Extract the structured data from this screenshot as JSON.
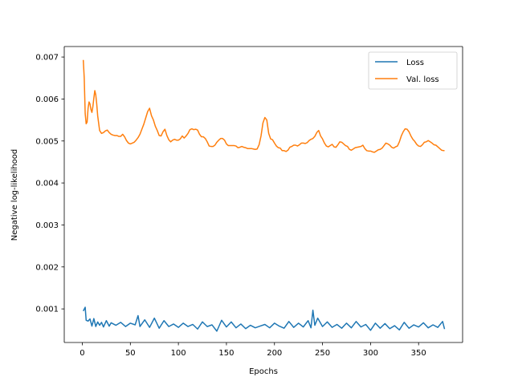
{
  "chart_data": {
    "type": "line",
    "title": "",
    "xlabel": "Epochs",
    "ylabel": "Negative log-likelihood",
    "xlim": [
      -18.8,
      395.8
    ],
    "ylim": [
      0.0002,
      0.00725
    ],
    "xticks": [
      0,
      50,
      100,
      150,
      200,
      250,
      300,
      350
    ],
    "xtick_labels": [
      "0",
      "50",
      "100",
      "150",
      "200",
      "250",
      "300",
      "350"
    ],
    "yticks": [
      0.001,
      0.002,
      0.003,
      0.004,
      0.005,
      0.006,
      0.007
    ],
    "ytick_labels": [
      "0.001",
      "0.002",
      "0.003",
      "0.004",
      "0.005",
      "0.006",
      "0.007"
    ],
    "grid": false,
    "legend_position": "upper right",
    "series": [
      {
        "name": "Loss",
        "color": "#1f77b4",
        "x": [
          1,
          3,
          4,
          6,
          8,
          10,
          12,
          14,
          16,
          18,
          20,
          22,
          25,
          28,
          30,
          35,
          40,
          45,
          50,
          55,
          58,
          60,
          65,
          70,
          75,
          80,
          85,
          90,
          95,
          100,
          105,
          110,
          115,
          120,
          125,
          130,
          135,
          140,
          145,
          150,
          155,
          160,
          165,
          170,
          175,
          180,
          185,
          190,
          195,
          200,
          205,
          210,
          215,
          220,
          225,
          230,
          235,
          238,
          240,
          242,
          245,
          250,
          255,
          260,
          265,
          270,
          275,
          280,
          285,
          290,
          295,
          300,
          305,
          310,
          315,
          320,
          325,
          330,
          335,
          340,
          345,
          350,
          355,
          360,
          365,
          370,
          375,
          377
        ],
        "y": [
          0.00095,
          0.00104,
          0.00073,
          0.00071,
          0.00076,
          0.00059,
          0.00077,
          0.00058,
          0.00069,
          0.00061,
          0.00068,
          0.00057,
          0.00072,
          0.00059,
          0.00067,
          0.00061,
          0.00068,
          0.00058,
          0.00066,
          0.00062,
          0.00084,
          0.00058,
          0.00074,
          0.00056,
          0.00078,
          0.00054,
          0.00072,
          0.00058,
          0.00064,
          0.00056,
          0.00066,
          0.00058,
          0.00063,
          0.00052,
          0.00069,
          0.00058,
          0.00062,
          0.00047,
          0.00073,
          0.00057,
          0.00069,
          0.00055,
          0.00064,
          0.00053,
          0.00061,
          0.00055,
          0.00059,
          0.00063,
          0.00055,
          0.00066,
          0.00059,
          0.00054,
          0.0007,
          0.00056,
          0.00066,
          0.00057,
          0.00072,
          0.00055,
          0.00097,
          0.00061,
          0.00078,
          0.00058,
          0.00069,
          0.00056,
          0.00063,
          0.00054,
          0.00066,
          0.00055,
          0.0007,
          0.00057,
          0.00063,
          0.00049,
          0.00066,
          0.00054,
          0.00065,
          0.00053,
          0.0006,
          0.0005,
          0.00068,
          0.00054,
          0.00062,
          0.00057,
          0.00067,
          0.00055,
          0.00062,
          0.00056,
          0.0007,
          0.00052
        ]
      },
      {
        "name": "Val. loss",
        "color": "#ff7f0e",
        "x": [
          1,
          2,
          3,
          4,
          5,
          6,
          7,
          8,
          9,
          10,
          11,
          12,
          13,
          14,
          15,
          16,
          18,
          20,
          22,
          24,
          26,
          28,
          30,
          32,
          34,
          36,
          38,
          40,
          42,
          44,
          46,
          48,
          50,
          52,
          54,
          56,
          58,
          60,
          62,
          64,
          66,
          68,
          70,
          72,
          74,
          76,
          78,
          80,
          82,
          84,
          86,
          88,
          90,
          92,
          94,
          96,
          98,
          100,
          102,
          104,
          106,
          108,
          110,
          112,
          114,
          116,
          118,
          120,
          122,
          124,
          126,
          128,
          130,
          132,
          134,
          136,
          138,
          140,
          142,
          144,
          146,
          148,
          150,
          152,
          154,
          156,
          158,
          160,
          162,
          164,
          166,
          168,
          170,
          172,
          174,
          176,
          178,
          180,
          182,
          184,
          186,
          188,
          190,
          192,
          194,
          196,
          198,
          200,
          202,
          204,
          206,
          208,
          210,
          212,
          214,
          216,
          218,
          220,
          222,
          224,
          226,
          228,
          230,
          232,
          234,
          236,
          238,
          240,
          242,
          244,
          246,
          248,
          250,
          252,
          254,
          256,
          258,
          260,
          262,
          264,
          266,
          268,
          270,
          272,
          274,
          276,
          278,
          280,
          282,
          284,
          286,
          288,
          290,
          292,
          294,
          296,
          298,
          300,
          302,
          304,
          306,
          308,
          310,
          312,
          314,
          316,
          318,
          320,
          322,
          324,
          326,
          328,
          330,
          332,
          334,
          336,
          338,
          340,
          342,
          344,
          346,
          348,
          350,
          352,
          354,
          356,
          358,
          360,
          362,
          364,
          366,
          368,
          370,
          372,
          374,
          376,
          377
        ],
        "y": [
          0.00693,
          0.0065,
          0.00565,
          0.00541,
          0.00545,
          0.00578,
          0.00593,
          0.00588,
          0.00575,
          0.00568,
          0.00582,
          0.00602,
          0.0062,
          0.0061,
          0.00588,
          0.0056,
          0.00525,
          0.00518,
          0.0052,
          0.00524,
          0.00526,
          0.0052,
          0.00516,
          0.00514,
          0.00513,
          0.00513,
          0.00511,
          0.00511,
          0.00516,
          0.0051,
          0.00501,
          0.00495,
          0.00493,
          0.00495,
          0.00497,
          0.00502,
          0.00508,
          0.00516,
          0.00528,
          0.0054,
          0.00555,
          0.0057,
          0.00578,
          0.0056,
          0.0055,
          0.00535,
          0.00525,
          0.00513,
          0.00512,
          0.00522,
          0.00528,
          0.00513,
          0.00503,
          0.00498,
          0.00502,
          0.00504,
          0.00502,
          0.00502,
          0.00505,
          0.00512,
          0.00507,
          0.00512,
          0.00518,
          0.00527,
          0.00529,
          0.00527,
          0.00528,
          0.00526,
          0.00516,
          0.0051,
          0.0051,
          0.00506,
          0.00498,
          0.00488,
          0.00487,
          0.00487,
          0.0049,
          0.00497,
          0.00502,
          0.00506,
          0.00506,
          0.00502,
          0.00493,
          0.00489,
          0.00489,
          0.00489,
          0.00489,
          0.00488,
          0.00484,
          0.00485,
          0.00487,
          0.00485,
          0.00484,
          0.00482,
          0.00482,
          0.00482,
          0.00481,
          0.0048,
          0.00481,
          0.00491,
          0.00512,
          0.00543,
          0.00556,
          0.0055,
          0.00518,
          0.00505,
          0.00503,
          0.00495,
          0.00488,
          0.00484,
          0.00483,
          0.00477,
          0.00477,
          0.00475,
          0.00478,
          0.00485,
          0.00487,
          0.0049,
          0.0049,
          0.00488,
          0.00491,
          0.00495,
          0.00495,
          0.00494,
          0.00496,
          0.00501,
          0.00504,
          0.00506,
          0.00511,
          0.0052,
          0.00525,
          0.00512,
          0.00505,
          0.00495,
          0.00488,
          0.00486,
          0.00489,
          0.00492,
          0.00486,
          0.00485,
          0.00491,
          0.00498,
          0.00497,
          0.00493,
          0.00489,
          0.00487,
          0.0048,
          0.00478,
          0.00481,
          0.00484,
          0.00485,
          0.00486,
          0.00487,
          0.0049,
          0.00482,
          0.00477,
          0.00476,
          0.00476,
          0.00474,
          0.00473,
          0.00476,
          0.00479,
          0.0048,
          0.00483,
          0.00489,
          0.00495,
          0.00493,
          0.0049,
          0.00485,
          0.00483,
          0.00486,
          0.00488,
          0.00498,
          0.00512,
          0.00522,
          0.00529,
          0.00528,
          0.00522,
          0.00512,
          0.00504,
          0.00499,
          0.00492,
          0.00488,
          0.00487,
          0.00491,
          0.00497,
          0.00498,
          0.00501,
          0.00498,
          0.00495,
          0.00491,
          0.0049,
          0.00486,
          0.00482,
          0.00478,
          0.00477,
          0.00477
        ]
      }
    ]
  }
}
